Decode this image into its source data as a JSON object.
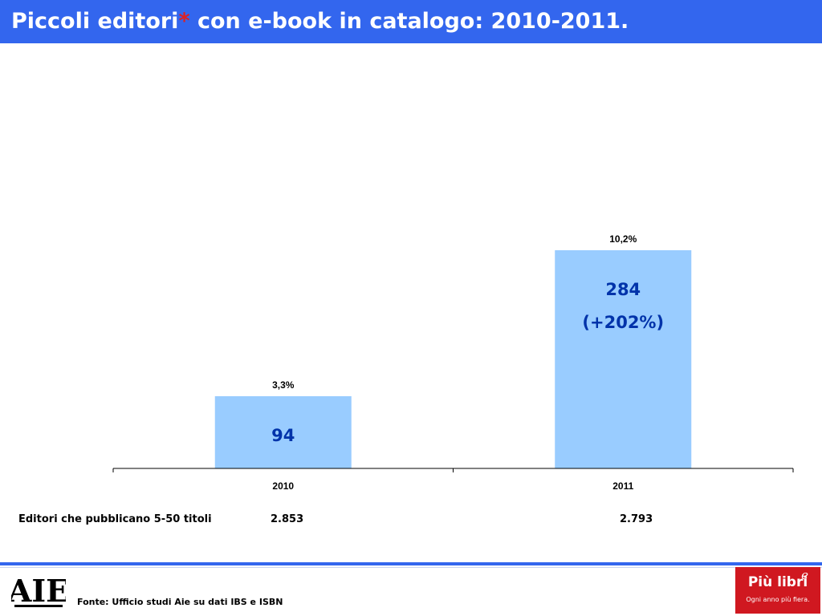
{
  "header": {
    "title_main": "Piccoli editori",
    "title_asterisk": "*",
    "title_rest": " con e-book in catalogo: 2010-2011.",
    "background": "#3366ee"
  },
  "chart_data": {
    "type": "bar",
    "categories": [
      "2010",
      "2011"
    ],
    "values": [
      94,
      284
    ],
    "value_labels": [
      "94",
      "284"
    ],
    "change_labels": [
      "",
      "(+202%)"
    ],
    "percent_labels": [
      "3,3%",
      "10,2%"
    ],
    "ylim": [
      0,
      380
    ],
    "bar_color": "#99ccff",
    "value_label_color": "#0033aa",
    "title": "",
    "xlabel": "",
    "ylabel": "",
    "grid": false,
    "legend": "none"
  },
  "table_row": {
    "label": "Editori che pubblicano 5-50 titoli",
    "values": [
      "2.853",
      "2.793"
    ]
  },
  "footer": {
    "source": "Fonte: Ufficio studi Aie su dati IBS e ISBN",
    "aie_logo_text": "AIE",
    "piu_logo_text": "Più libri",
    "piu_logo_e": "e",
    "piu_logo_tagline": "Ogni anno più fiera."
  }
}
